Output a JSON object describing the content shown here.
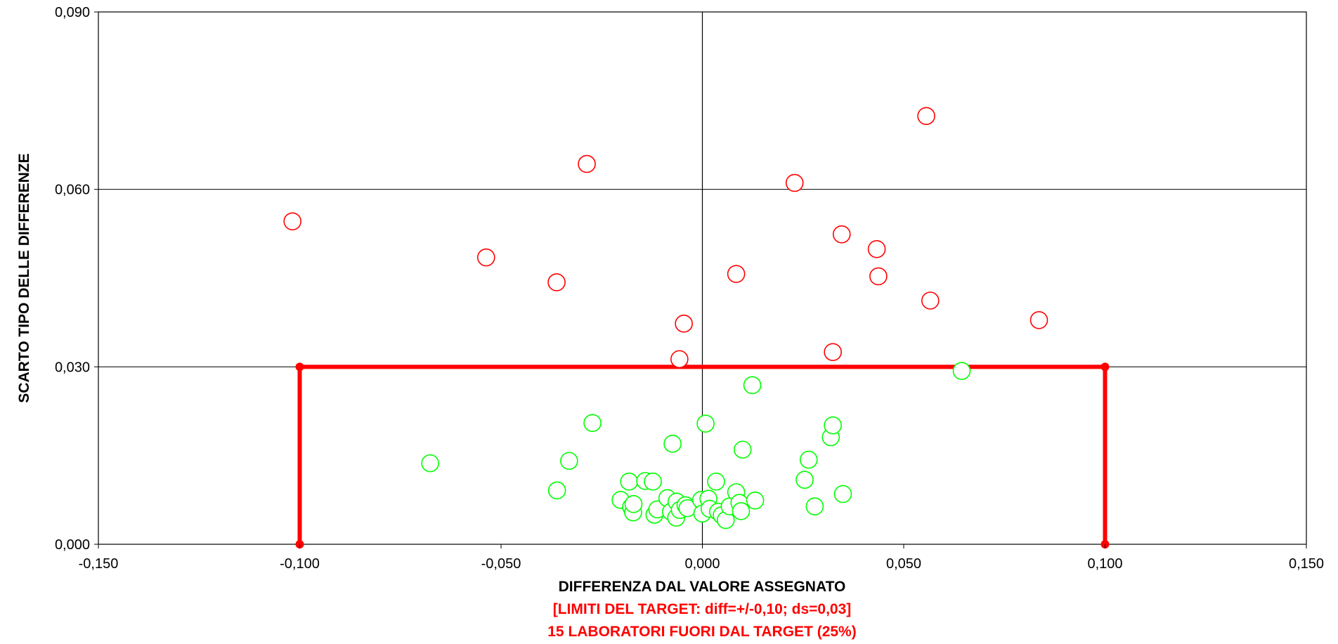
{
  "chart_data": {
    "type": "scatter",
    "xlabel": "DIFFERENZA DAL VALORE ASSEGNATO",
    "ylabel": "SCARTO TIPO DELLE DIFFERENZE",
    "notes": [
      "[LIMITI DEL TARGET: diff=+/-0,10; ds=0,03]",
      "15 LABORATORI FUORI DAL TARGET (25%)"
    ],
    "xlim": [
      -0.15,
      0.15
    ],
    "ylim": [
      0,
      0.09
    ],
    "x_ticks": [
      -0.15,
      -0.1,
      -0.05,
      0,
      0.05,
      0.1,
      0.15
    ],
    "x_tick_labels": [
      "-0,150",
      "-0,100",
      "-0,050",
      "0,000",
      "0,050",
      "0,100",
      "0,150"
    ],
    "y_ticks": [
      0,
      0.03,
      0.06,
      0.09
    ],
    "y_tick_labels": [
      "0,000",
      "0,030",
      "0,060",
      "0,090"
    ],
    "grid": true,
    "target": {
      "x": [
        -0.1,
        0.1
      ],
      "y": [
        0,
        0.03
      ],
      "color": "#ff0000"
    },
    "series": [
      {
        "color": "#ff0000",
        "points": [
          [
            -0.1018,
            0.0546
          ],
          [
            -0.0537,
            0.0485
          ],
          [
            -0.0362,
            0.0443
          ],
          [
            -0.0287,
            0.0643
          ],
          [
            -0.0046,
            0.0373
          ],
          [
            -0.0057,
            0.0313
          ],
          [
            0.0084,
            0.0457
          ],
          [
            0.0229,
            0.0611
          ],
          [
            0.0346,
            0.0524
          ],
          [
            0.0324,
            0.0325
          ],
          [
            0.0433,
            0.0499
          ],
          [
            0.0437,
            0.0453
          ],
          [
            0.0556,
            0.0724
          ],
          [
            0.0566,
            0.0412
          ],
          [
            0.0836,
            0.0379
          ]
        ]
      },
      {
        "color": "#00ff00",
        "points": [
          [
            -0.0676,
            0.0137
          ],
          [
            -0.0361,
            0.0091
          ],
          [
            -0.0331,
            0.0141
          ],
          [
            -0.0273,
            0.0205
          ],
          [
            -0.0203,
            0.0075
          ],
          [
            -0.0182,
            0.0106
          ],
          [
            -0.0177,
            0.0063
          ],
          [
            -0.0172,
            0.0054
          ],
          [
            -0.0171,
            0.0068
          ],
          [
            -0.0142,
            0.0107
          ],
          [
            -0.0123,
            0.0106
          ],
          [
            -0.0119,
            0.005
          ],
          [
            -0.0112,
            0.0059
          ],
          [
            -0.0087,
            0.0078
          ],
          [
            -0.0078,
            0.0055
          ],
          [
            -0.0074,
            0.017
          ],
          [
            -0.0065,
            0.0045
          ],
          [
            -0.0064,
            0.0072
          ],
          [
            -0.0056,
            0.0058
          ],
          [
            -0.0042,
            0.0066
          ],
          [
            -0.0037,
            0.0061
          ],
          [
            -0.0003,
            0.0075
          ],
          [
            0.0,
            0.0052
          ],
          [
            0.0008,
            0.0204
          ],
          [
            0.0015,
            0.0077
          ],
          [
            0.0018,
            0.006
          ],
          [
            0.0034,
            0.0106
          ],
          [
            0.0039,
            0.0055
          ],
          [
            0.0048,
            0.0049
          ],
          [
            0.0058,
            0.0041
          ],
          [
            0.0068,
            0.0064
          ],
          [
            0.0084,
            0.0088
          ],
          [
            0.0092,
            0.007
          ],
          [
            0.0096,
            0.0056
          ],
          [
            0.01,
            0.016
          ],
          [
            0.0124,
            0.0269
          ],
          [
            0.0131,
            0.0074
          ],
          [
            0.0254,
            0.0109
          ],
          [
            0.0264,
            0.0143
          ],
          [
            0.0279,
            0.0064
          ],
          [
            0.0319,
            0.0181
          ],
          [
            0.0324,
            0.0201
          ],
          [
            0.0349,
            0.0085
          ],
          [
            0.0644,
            0.0293
          ]
        ]
      }
    ]
  }
}
